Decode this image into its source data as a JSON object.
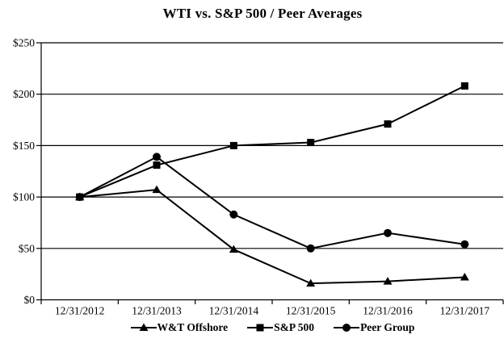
{
  "title": "WTI vs. S&P 500 / Peer Averages",
  "chart_data": {
    "type": "line",
    "title": "WTI vs. S&P 500 / Peer Averages",
    "categories": [
      "12/31/2012",
      "12/31/2013",
      "12/31/2014",
      "12/31/2015",
      "12/31/2016",
      "12/31/2017"
    ],
    "series": [
      {
        "name": "W&T Offshore",
        "marker": "triangle",
        "values": [
          100,
          107,
          49,
          16,
          18,
          22
        ]
      },
      {
        "name": "S&P 500",
        "marker": "square",
        "values": [
          100,
          131,
          150,
          153,
          171,
          208
        ]
      },
      {
        "name": "Peer Group",
        "marker": "circle",
        "values": [
          100,
          139,
          83,
          50,
          65,
          54
        ]
      }
    ],
    "xlabel": "",
    "ylabel": "",
    "ylim": [
      0,
      250
    ],
    "ytick_step": 50,
    "ytick_labels": [
      "$0",
      "$50",
      "$100",
      "$150",
      "$200",
      "$250"
    ],
    "grid": "horizontal",
    "legend_position": "bottom",
    "line_color": "#000000",
    "background_color": "#ffffff"
  }
}
